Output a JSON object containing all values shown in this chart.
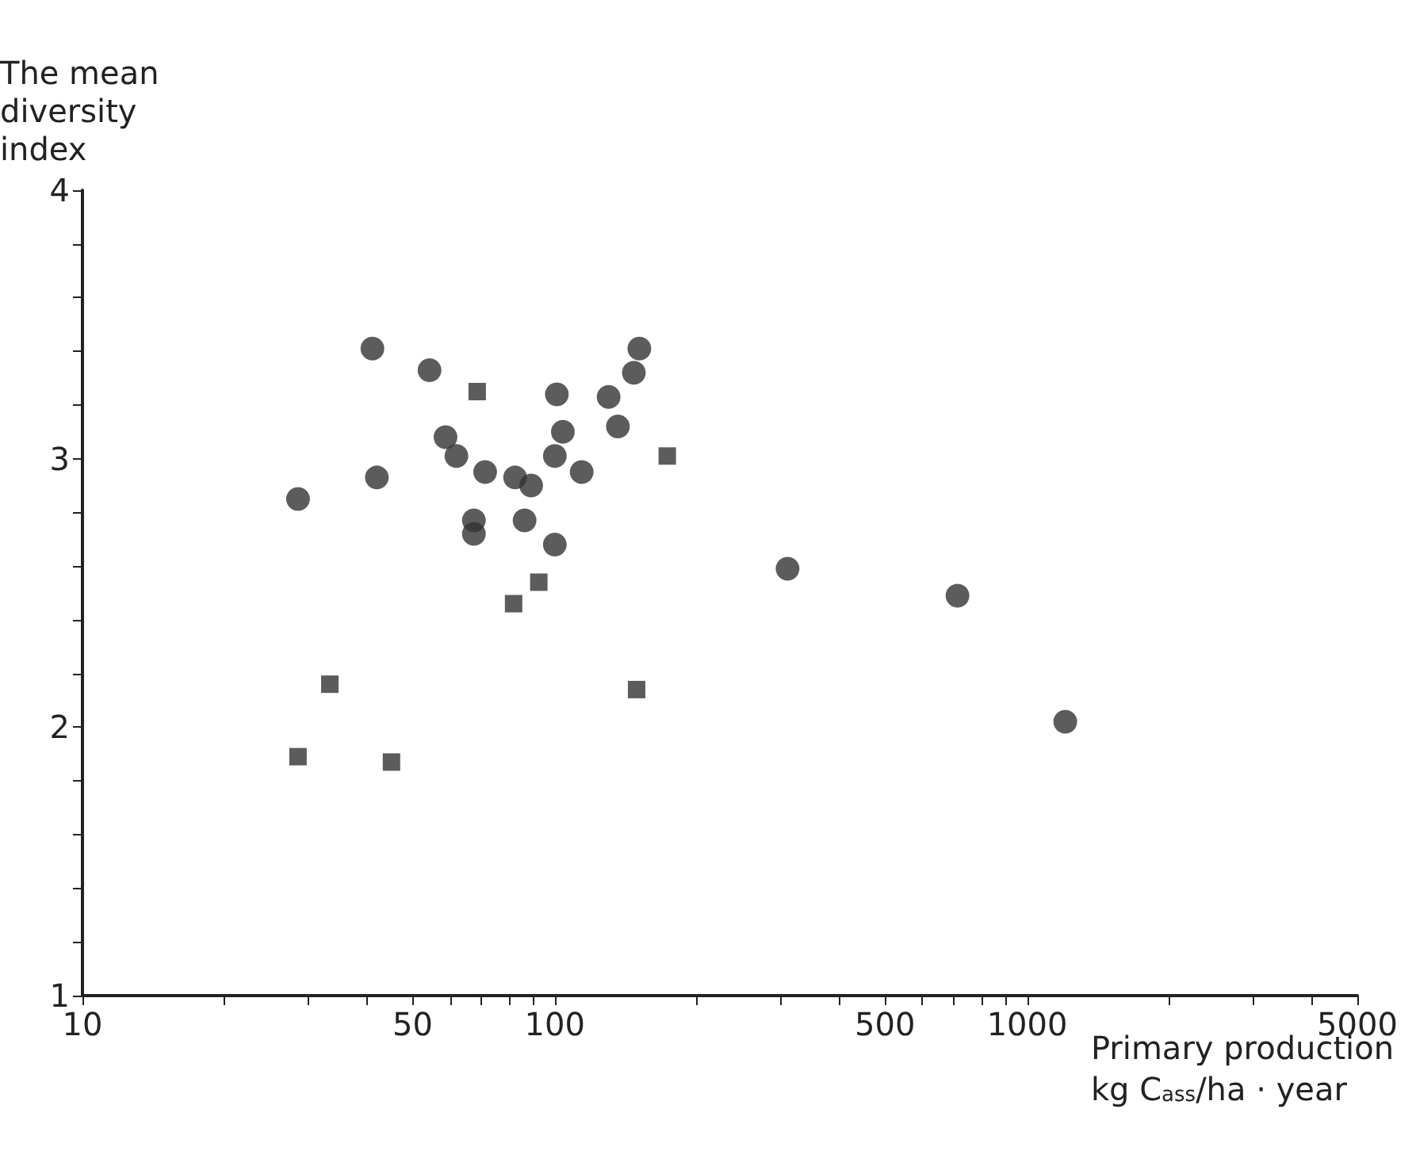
{
  "chart_data": {
    "type": "scatter",
    "xlabel": "Primary production\nkg C$_{ass}$/ha · year",
    "ylabel": "The mean\ndiversity\nindex",
    "log": "x",
    "grid": false,
    "xlim": [
      10,
      5000
    ],
    "xticks": [
      10,
      {
        "value": 20,
        "label": null
      },
      {
        "value": 30,
        "label": null
      },
      {
        "value": 40,
        "label": null
      },
      50,
      {
        "value": 60,
        "label": null
      },
      {
        "value": 70,
        "label": null
      },
      {
        "value": 80,
        "label": null
      },
      {
        "value": 90,
        "label": null
      },
      100,
      {
        "value": 200,
        "label": null
      },
      {
        "value": 300,
        "label": null
      },
      {
        "value": 400,
        "label": null
      },
      500,
      {
        "value": 600,
        "label": null
      },
      {
        "value": 700,
        "label": null
      },
      {
        "value": 800,
        "label": null
      },
      {
        "value": 900,
        "label": null
      },
      1000,
      {
        "value": 2000,
        "label": null
      },
      {
        "value": 3000,
        "label": null
      },
      {
        "value": 4000,
        "label": null
      },
      5000
    ],
    "ylim": [
      1,
      4
    ],
    "yticks": [
      1,
      {
        "value": 1.2,
        "label": null
      },
      {
        "value": 1.4,
        "label": null
      },
      {
        "value": 1.6,
        "label": null
      },
      {
        "value": 1.8,
        "label": null
      },
      2,
      {
        "value": 2.2,
        "label": null
      },
      {
        "value": 2.4,
        "label": null
      },
      {
        "value": 2.6,
        "label": null
      },
      {
        "value": 2.8,
        "label": null
      },
      3,
      {
        "value": 3.2,
        "label": null
      },
      {
        "value": 3.4,
        "label": null
      },
      {
        "value": 3.6,
        "label": null
      },
      {
        "value": 3.8,
        "label": null
      },
      4
    ],
    "series": [
      {
        "color": "#333333",
        "marker": "circle",
        "x": [
          28.6,
          41.1,
          42,
          54.3,
          58.7,
          61.9,
          71.2,
          67.4,
          67.4,
          82.4,
          89.1,
          86.3,
          101,
          104,
          100,
          114,
          100,
          130,
          136,
          147,
          151,
          311,
          712,
          1204
        ],
        "values": [
          2.85,
          3.41,
          2.93,
          3.33,
          3.08,
          3.01,
          2.95,
          2.77,
          2.72,
          2.93,
          2.9,
          2.77,
          3.24,
          3.1,
          3.01,
          2.95,
          2.68,
          3.23,
          3.12,
          3.32,
          3.41,
          2.59,
          2.49,
          2.02
        ]
      },
      {
        "color": "#333333",
        "marker": "square",
        "x": [
          68.5,
          173,
          92.5,
          81.8,
          33.4,
          149,
          28.6,
          45.1
        ],
        "values": [
          3.25,
          3.01,
          2.54,
          2.46,
          2.16,
          2.14,
          1.89,
          1.87
        ]
      }
    ]
  }
}
